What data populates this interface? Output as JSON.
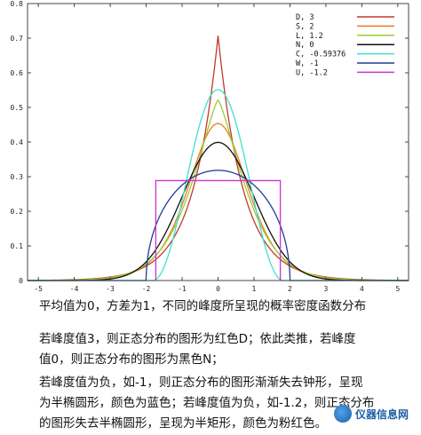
{
  "chart_data": {
    "type": "line",
    "xlim": [
      -5.3,
      5.3
    ],
    "ylim": [
      0,
      0.8
    ],
    "x_ticks": [
      -5,
      -4,
      -3,
      -2,
      -1,
      0,
      1,
      2,
      3,
      4,
      5
    ],
    "y_ticks": [
      0,
      0.1,
      0.2,
      0.3,
      0.4,
      0.5,
      0.6,
      0.7,
      0.8
    ],
    "grid": false,
    "legend_position": "top-right",
    "series": [
      {
        "name": "D, 3",
        "kurtosis": 3,
        "color": "#c0392b",
        "peak": 0.707
      },
      {
        "name": "S, 2",
        "kurtosis": 2,
        "color": "#e67e22",
        "peak": 0.5
      },
      {
        "name": "L, 1.2",
        "kurtosis": 1.2,
        "color": "#9acd32",
        "peak": 0.453
      },
      {
        "name": "N, 0",
        "kurtosis": 0,
        "color": "#111111",
        "peak": 0.399
      },
      {
        "name": "C, -0.59376",
        "kurtosis": -0.59376,
        "color": "#40e0d0",
        "peak": 0.363
      },
      {
        "name": "W, -1",
        "kurtosis": -1,
        "color": "#1f3d99",
        "peak": 0.318
      },
      {
        "name": "U, -1.2",
        "kurtosis": -1.2,
        "color": "#cc33cc",
        "peak": 0.289
      }
    ]
  },
  "caption": {
    "line1": "平均值为0，方差为1，不同的峰度所呈现的概率密度函数分布",
    "line2": "若峰度值3，则正态分布的图形为红色D；依此类推，若峰度",
    "line3": "值0，则正态分布的图形为黑色N；",
    "line4": "若峰度值为负，如-1，则正态分布的图形渐渐失去钟形，呈现",
    "line5": "为半椭圆形，颜色为蓝色；若峰度值为负，如-1.2，则正态分布",
    "line6": "的图形失去半椭圆形，呈现为半矩形，颜色为粉红色。"
  },
  "watermark": {
    "text": "仪器信息网"
  }
}
